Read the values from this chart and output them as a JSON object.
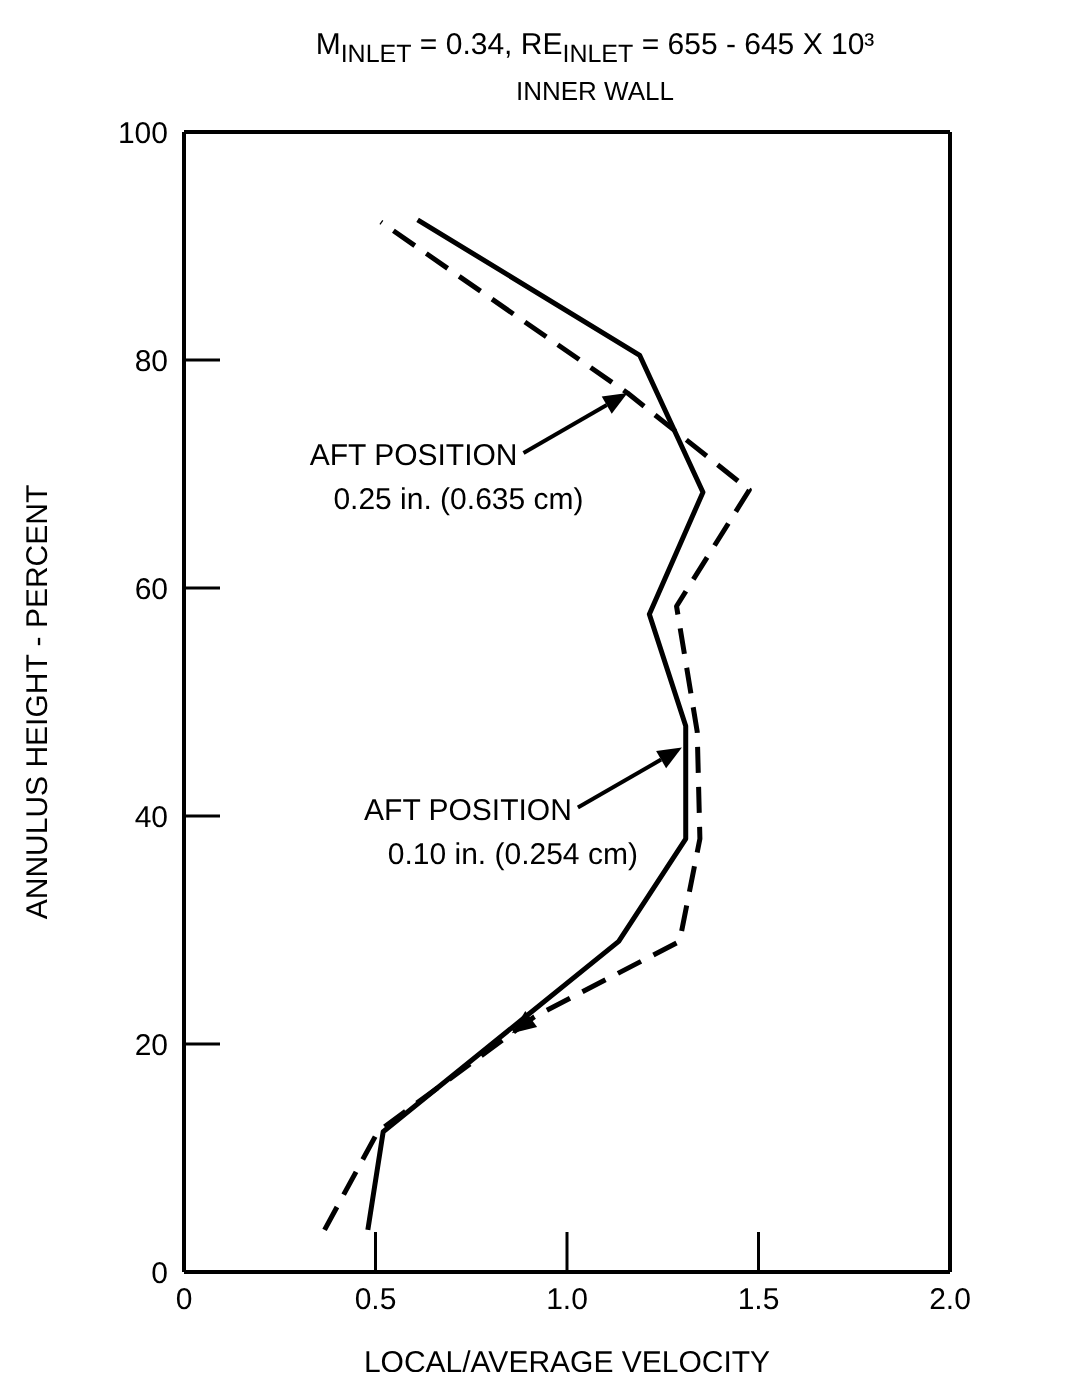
{
  "chart_data": {
    "type": "line",
    "title": "M$_{INLET}$ = 0.34, RE$_{INLET}$ = 655 - 645 X 10³",
    "subtitle": "INNER WALL",
    "xlabel": "LOCAL/AVERAGE VELOCITY",
    "ylabel": "ANNULUS HEIGHT - PERCENT",
    "xlim": [
      0,
      2
    ],
    "xticks": [
      0,
      0.5,
      {
        "value": 1,
        "label": "1.0"
      },
      1.5,
      {
        "value": 2,
        "label": "2.0"
      }
    ],
    "ylim": [
      0,
      100
    ],
    "yticks": [
      0,
      20,
      40,
      60,
      80,
      100
    ],
    "marker": "none",
    "series": [
      {
        "color": "#000000",
        "line_style": "solid",
        "x": [
          0.48,
          0.52,
          1.135,
          1.31,
          1.31,
          1.215,
          1.355,
          1.19,
          0.61
        ],
        "values": [
          3.7,
          12.3,
          29,
          38,
          47.9,
          57.7,
          68.4,
          80.4,
          92.3
        ]
      },
      {
        "color": "#000000",
        "line_style": "dashed",
        "x": [
          0.367,
          0.506,
          0.915,
          1.294,
          1.347,
          1.34,
          1.286,
          1.476,
          1.158,
          0.514
        ],
        "values": [
          3.7,
          12.3,
          22.4,
          29,
          38,
          47.4,
          58.4,
          68.6,
          77.1,
          92.1
        ]
      }
    ],
    "annotations": [
      {
        "text": "AFT POSITION\n0.25 in. (0.635 cm)",
        "x": 1.158,
        "y": 77.1
      },
      {
        "text": "AFT POSITION\n0.10 in. (0.254 cm)",
        "x": 1.3,
        "y": 46
      }
    ]
  }
}
